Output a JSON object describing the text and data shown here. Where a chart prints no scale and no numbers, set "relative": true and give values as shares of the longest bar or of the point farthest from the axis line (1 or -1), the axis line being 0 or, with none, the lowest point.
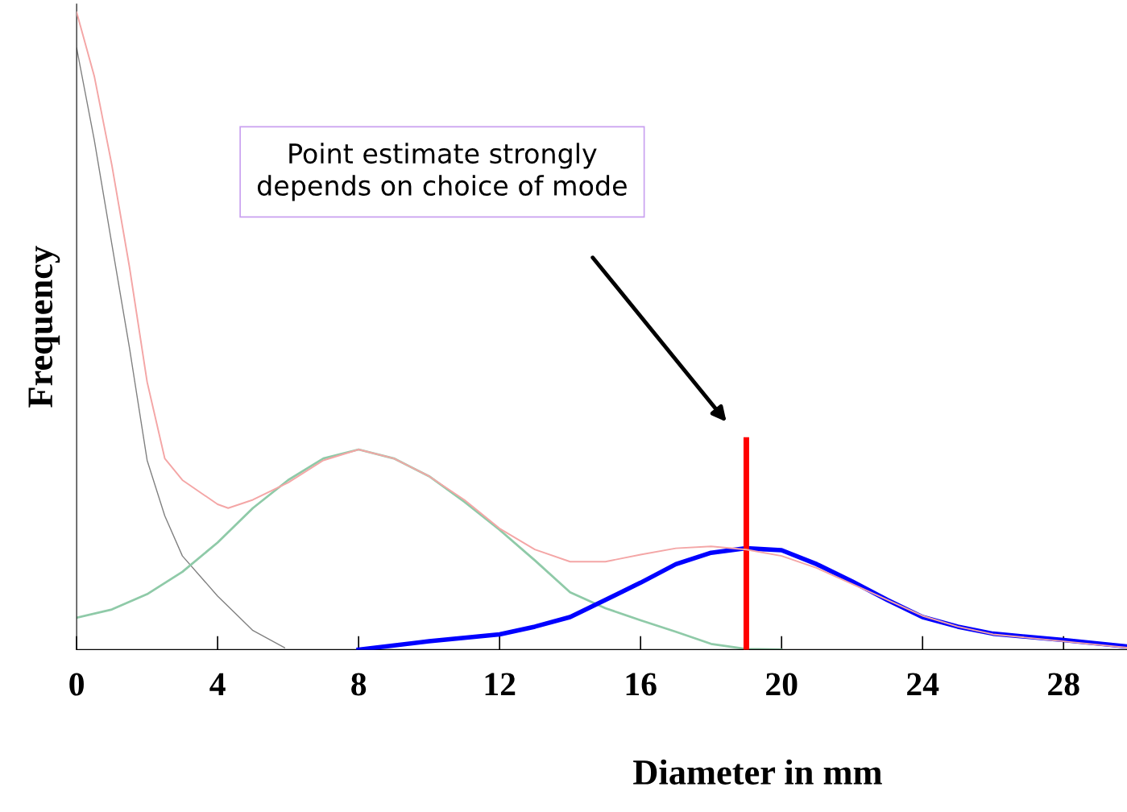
{
  "chart_data": {
    "type": "line",
    "relative": true,
    "xlabel": "Diameter in mm",
    "ylabel": "Frequency",
    "xlim": [
      0,
      29.8
    ],
    "xticks": [
      0,
      4,
      8,
      12,
      16,
      20,
      24,
      28
    ],
    "grid": false,
    "legend": false,
    "marker": "none",
    "line_style": "solid",
    "series": [
      {
        "color": "#808080",
        "x": [
          0,
          0.5,
          1,
          1.5,
          2,
          2.5,
          3,
          4,
          5,
          5.9
        ],
        "values": [
          0.944,
          0.8,
          0.636,
          0.473,
          0.297,
          0.21,
          0.147,
          0.084,
          0.03,
          0.003
        ]
      },
      {
        "color": "#f4a6a6",
        "x": [
          0,
          0.5,
          1,
          1.5,
          2,
          2.5,
          3,
          4,
          4.3,
          5,
          6,
          7,
          8,
          9,
          10,
          11,
          12,
          13,
          14,
          15,
          16,
          17,
          18,
          19,
          20,
          21,
          22,
          23,
          24,
          25,
          26,
          28,
          29.8
        ],
        "values": [
          1.0,
          0.9,
          0.76,
          0.6,
          0.42,
          0.3,
          0.266,
          0.228,
          0.222,
          0.235,
          0.262,
          0.297,
          0.314,
          0.3,
          0.272,
          0.235,
          0.19,
          0.157,
          0.138,
          0.138,
          0.149,
          0.159,
          0.162,
          0.157,
          0.147,
          0.128,
          0.103,
          0.078,
          0.053,
          0.036,
          0.024,
          0.013,
          0.003
        ]
      },
      {
        "color": "#8fcaa8",
        "x": [
          0,
          1,
          2,
          3,
          4,
          5,
          6,
          7,
          8,
          9,
          10,
          11,
          12,
          13,
          14,
          15,
          16,
          17,
          18,
          19,
          20
        ],
        "values": [
          0.05,
          0.063,
          0.087,
          0.122,
          0.168,
          0.222,
          0.266,
          0.3,
          0.314,
          0.3,
          0.272,
          0.232,
          0.188,
          0.14,
          0.09,
          0.065,
          0.046,
          0.028,
          0.009,
          0.001,
          0
        ]
      },
      {
        "color": "#0000ff",
        "x": [
          8,
          10,
          12,
          13,
          14,
          15,
          16,
          17,
          18,
          19,
          20,
          21,
          22,
          23,
          24,
          25,
          26,
          28,
          29.8
        ],
        "values": [
          0,
          0.013,
          0.024,
          0.036,
          0.051,
          0.078,
          0.105,
          0.134,
          0.152,
          0.159,
          0.156,
          0.134,
          0.107,
          0.078,
          0.051,
          0.036,
          0.025,
          0.015,
          0.005
        ]
      },
      {
        "color": "#ff0000",
        "x": [
          19,
          19
        ],
        "values": [
          0,
          0.329
        ]
      }
    ],
    "annotations": [
      "Point estimate strongly\ndepends on choice of mode"
    ]
  }
}
